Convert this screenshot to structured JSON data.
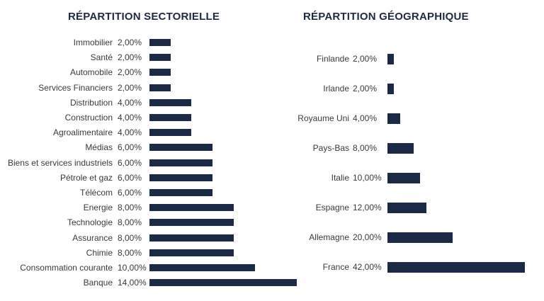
{
  "chart_data": [
    {
      "type": "bar",
      "orientation": "horizontal",
      "title": "RÉPARTITION SECTORIELLE",
      "categories": [
        "Immobilier",
        "Santé",
        "Automobile",
        "Services Financiers",
        "Distribution",
        "Construction",
        "Agroalimentaire",
        "Médias",
        "Biens et services industriels",
        "Pétrole et gaz",
        "Télécom",
        "Energie",
        "Technologie",
        "Assurance",
        "Chimie",
        "Consommation courante",
        "Banque"
      ],
      "values": [
        2,
        2,
        2,
        2,
        4,
        4,
        4,
        6,
        6,
        6,
        6,
        8,
        8,
        8,
        8,
        10,
        14
      ],
      "value_labels": [
        "2,00%",
        "2,00%",
        "2,00%",
        "2,00%",
        "4,00%",
        "4,00%",
        "4,00%",
        "6,00%",
        "6,00%",
        "6,00%",
        "6,00%",
        "8,00%",
        "8,00%",
        "8,00%",
        "8,00%",
        "10,00%",
        "14,00%"
      ],
      "unit": "%",
      "bar_color": "#1b2a47",
      "xlim": [
        0,
        14
      ]
    },
    {
      "type": "bar",
      "orientation": "horizontal",
      "title": "RÉPARTITION GÉOGRAPHIQUE",
      "categories": [
        "Finlande",
        "Irlande",
        "Royaume Uni",
        "Pays-Bas",
        "Italie",
        "Espagne",
        "Allemagne",
        "France"
      ],
      "values": [
        2,
        2,
        4,
        8,
        10,
        12,
        20,
        42
      ],
      "value_labels": [
        "2,00%",
        "2,00%",
        "4,00%",
        "8,00%",
        "10,00%",
        "12,00%",
        "20,00%",
        "42,00%"
      ],
      "unit": "%",
      "bar_color": "#1b2a47",
      "xlim": [
        0,
        42
      ]
    }
  ]
}
